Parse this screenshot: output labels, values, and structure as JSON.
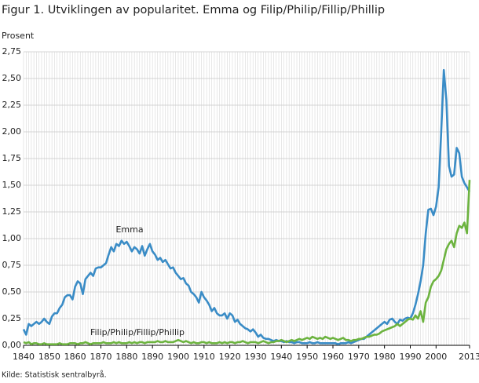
{
  "chart_data": {
    "type": "line",
    "title": "Figur 1. Utviklingen av popularitet. Emma og Filip/Philip/Fillip/Phillip",
    "y_label": "Prosent",
    "source": "Kilde: Statistisk sentralbyrå.",
    "x": [
      1840,
      1841,
      1842,
      1843,
      1844,
      1845,
      1846,
      1847,
      1848,
      1849,
      1850,
      1851,
      1852,
      1853,
      1854,
      1855,
      1856,
      1857,
      1858,
      1859,
      1860,
      1861,
      1862,
      1863,
      1864,
      1865,
      1866,
      1867,
      1868,
      1869,
      1870,
      1871,
      1872,
      1873,
      1874,
      1875,
      1876,
      1877,
      1878,
      1879,
      1880,
      1881,
      1882,
      1883,
      1884,
      1885,
      1886,
      1887,
      1888,
      1889,
      1890,
      1891,
      1892,
      1893,
      1894,
      1895,
      1896,
      1897,
      1898,
      1899,
      1900,
      1901,
      1902,
      1903,
      1904,
      1905,
      1906,
      1907,
      1908,
      1909,
      1910,
      1911,
      1912,
      1913,
      1914,
      1915,
      1916,
      1917,
      1918,
      1919,
      1920,
      1921,
      1922,
      1923,
      1924,
      1925,
      1926,
      1927,
      1928,
      1929,
      1930,
      1931,
      1932,
      1933,
      1934,
      1935,
      1936,
      1937,
      1938,
      1939,
      1940,
      1941,
      1942,
      1943,
      1944,
      1945,
      1946,
      1947,
      1948,
      1949,
      1950,
      1951,
      1952,
      1953,
      1954,
      1955,
      1956,
      1957,
      1958,
      1959,
      1960,
      1961,
      1962,
      1963,
      1964,
      1965,
      1966,
      1967,
      1968,
      1969,
      1970,
      1971,
      1972,
      1973,
      1974,
      1975,
      1976,
      1977,
      1978,
      1979,
      1980,
      1981,
      1982,
      1983,
      1984,
      1985,
      1986,
      1987,
      1988,
      1989,
      1990,
      1991,
      1992,
      1993,
      1994,
      1995,
      1996,
      1997,
      1998,
      1999,
      2000,
      2001,
      2002,
      2003,
      2004,
      2005,
      2006,
      2007,
      2008,
      2009,
      2010,
      2011,
      2012,
      2013
    ],
    "series": [
      {
        "name": "Emma",
        "color": "#3a8cc6",
        "values": [
          0.15,
          0.1,
          0.2,
          0.18,
          0.2,
          0.22,
          0.2,
          0.22,
          0.25,
          0.22,
          0.2,
          0.27,
          0.3,
          0.3,
          0.35,
          0.38,
          0.45,
          0.47,
          0.47,
          0.43,
          0.55,
          0.6,
          0.58,
          0.48,
          0.62,
          0.65,
          0.68,
          0.65,
          0.72,
          0.73,
          0.73,
          0.75,
          0.77,
          0.85,
          0.92,
          0.88,
          0.95,
          0.93,
          0.98,
          0.95,
          0.97,
          0.93,
          0.88,
          0.92,
          0.9,
          0.86,
          0.93,
          0.84,
          0.9,
          0.95,
          0.88,
          0.85,
          0.8,
          0.82,
          0.78,
          0.8,
          0.76,
          0.72,
          0.73,
          0.68,
          0.65,
          0.62,
          0.63,
          0.58,
          0.56,
          0.5,
          0.48,
          0.45,
          0.4,
          0.5,
          0.45,
          0.42,
          0.38,
          0.32,
          0.35,
          0.3,
          0.28,
          0.28,
          0.3,
          0.25,
          0.3,
          0.28,
          0.22,
          0.24,
          0.2,
          0.18,
          0.16,
          0.15,
          0.13,
          0.15,
          0.12,
          0.08,
          0.1,
          0.07,
          0.06,
          0.06,
          0.05,
          0.04,
          0.05,
          0.04,
          0.04,
          0.03,
          0.04,
          0.03,
          0.03,
          0.02,
          0.03,
          0.03,
          0.02,
          0.02,
          0.02,
          0.03,
          0.02,
          0.02,
          0.03,
          0.02,
          0.02,
          0.02,
          0.02,
          0.02,
          0.02,
          0.02,
          0.01,
          0.02,
          0.02,
          0.02,
          0.03,
          0.02,
          0.03,
          0.04,
          0.05,
          0.06,
          0.06,
          0.08,
          0.1,
          0.12,
          0.14,
          0.16,
          0.18,
          0.2,
          0.22,
          0.2,
          0.24,
          0.25,
          0.22,
          0.2,
          0.24,
          0.23,
          0.25,
          0.26,
          0.25,
          0.3,
          0.38,
          0.48,
          0.6,
          0.75,
          1.05,
          1.27,
          1.28,
          1.22,
          1.3,
          1.48,
          2.0,
          2.58,
          2.3,
          1.68,
          1.58,
          1.6,
          1.85,
          1.8,
          1.58,
          1.52,
          1.48,
          1.44
        ]
      },
      {
        "name": "Filip/Philip/Fillip/Phillip",
        "color": "#6cb33f",
        "values": [
          0.03,
          0.02,
          0.03,
          0.01,
          0.02,
          0.02,
          0.01,
          0.01,
          0.02,
          0.01,
          0.01,
          0.01,
          0.01,
          0.01,
          0.02,
          0.01,
          0.01,
          0.01,
          0.02,
          0.02,
          0.02,
          0.01,
          0.02,
          0.02,
          0.03,
          0.02,
          0.01,
          0.02,
          0.02,
          0.02,
          0.02,
          0.03,
          0.02,
          0.02,
          0.02,
          0.03,
          0.02,
          0.03,
          0.02,
          0.02,
          0.02,
          0.03,
          0.02,
          0.03,
          0.02,
          0.03,
          0.03,
          0.02,
          0.03,
          0.03,
          0.03,
          0.03,
          0.04,
          0.03,
          0.03,
          0.04,
          0.03,
          0.03,
          0.03,
          0.04,
          0.05,
          0.04,
          0.03,
          0.04,
          0.03,
          0.02,
          0.03,
          0.02,
          0.02,
          0.03,
          0.03,
          0.02,
          0.03,
          0.02,
          0.02,
          0.02,
          0.03,
          0.02,
          0.03,
          0.02,
          0.03,
          0.03,
          0.02,
          0.03,
          0.03,
          0.04,
          0.03,
          0.02,
          0.03,
          0.03,
          0.03,
          0.02,
          0.03,
          0.04,
          0.03,
          0.02,
          0.03,
          0.03,
          0.04,
          0.04,
          0.05,
          0.04,
          0.03,
          0.04,
          0.05,
          0.04,
          0.05,
          0.06,
          0.05,
          0.06,
          0.07,
          0.06,
          0.08,
          0.07,
          0.06,
          0.07,
          0.06,
          0.08,
          0.07,
          0.06,
          0.07,
          0.06,
          0.05,
          0.06,
          0.07,
          0.05,
          0.05,
          0.04,
          0.05,
          0.05,
          0.06,
          0.06,
          0.07,
          0.08,
          0.08,
          0.09,
          0.1,
          0.1,
          0.11,
          0.13,
          0.14,
          0.15,
          0.16,
          0.17,
          0.18,
          0.2,
          0.18,
          0.2,
          0.22,
          0.24,
          0.25,
          0.24,
          0.28,
          0.25,
          0.32,
          0.22,
          0.4,
          0.45,
          0.55,
          0.6,
          0.62,
          0.65,
          0.7,
          0.8,
          0.9,
          0.95,
          0.98,
          0.92,
          1.05,
          1.12,
          1.1,
          1.15,
          1.05,
          1.55
        ]
      }
    ],
    "xlim": [
      1840,
      2013
    ],
    "xticks": [
      1840,
      1850,
      1860,
      1870,
      1880,
      1890,
      1900,
      1910,
      1920,
      1930,
      1940,
      1950,
      1960,
      1970,
      1980,
      1990,
      2000,
      2013
    ],
    "ylim": [
      0,
      2.75
    ],
    "yticks": [
      {
        "value": 0,
        "label": "0,00"
      },
      {
        "value": 0.25,
        "label": "0,25"
      },
      {
        "value": 0.5,
        "label": "0,50"
      },
      {
        "value": 0.75,
        "label": "0,75"
      },
      {
        "value": 1,
        "label": "1,00"
      },
      {
        "value": 1.25,
        "label": "1,25"
      },
      {
        "value": 1.5,
        "label": "1,50"
      },
      {
        "value": 1.75,
        "label": "1,75"
      },
      {
        "value": 2,
        "label": "2,00"
      },
      {
        "value": 2.25,
        "label": "2,25"
      },
      {
        "value": 2.5,
        "label": "2,50"
      },
      {
        "value": 2.75,
        "label": "2,75"
      }
    ],
    "grid": true
  }
}
